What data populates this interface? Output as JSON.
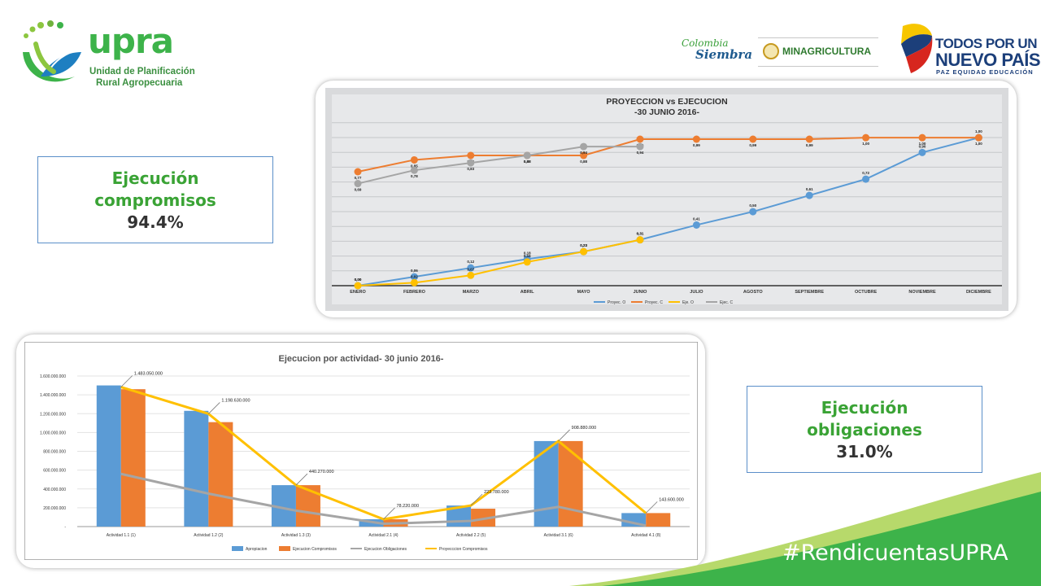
{
  "header": {
    "logo": {
      "name": "upra",
      "line1": "Unidad de Planificación",
      "line2": "Rural Agropecuaria",
      "color": "#3db34a"
    },
    "partner1_line1": "Colombia",
    "partner1_line2": "Siembra",
    "partner2": "MINAGRICULTURA",
    "partner3_line1": "TODOS POR UN",
    "partner3_line2": "NUEVO PAÍS",
    "partner3_line3": "PAZ  EQUIDAD  EDUCACIÓN"
  },
  "stat_compromisos": {
    "line1": "Ejecución",
    "line2": "compromisos",
    "value": "94.4%"
  },
  "stat_obligaciones": {
    "line1": "Ejecución",
    "line2": "obligaciones",
    "value": "31.0%"
  },
  "footer": {
    "hashtag": "#RendicuentasUPRA"
  },
  "colors": {
    "blue": "#5b9bd5",
    "orange": "#ed7d31",
    "gray": "#a5a5a5",
    "yellow": "#ffc000",
    "brand_green": "#3db34a"
  },
  "chart_data": [
    {
      "type": "line",
      "title": "PROYECCION vs EJECUCION",
      "subtitle": "-30 JUNIO 2016-",
      "categories": [
        "ENERO",
        "FEBRERO",
        "MARZO",
        "ABRIL",
        "MAYO",
        "JUNIO",
        "JULIO",
        "AGOSTO",
        "SEPTIEMBRE",
        "OCTUBRE",
        "NOVIEMBRE",
        "DICIEMBRE"
      ],
      "ylim": [
        0,
        1.1
      ],
      "grid": true,
      "legend": "bottom",
      "series": [
        {
          "name": "Proyec. O",
          "color": "#5b9bd5",
          "values": [
            0.0,
            0.06,
            0.12,
            0.18,
            0.23,
            0.31,
            0.41,
            0.5,
            0.61,
            0.72,
            0.9,
            1.0
          ]
        },
        {
          "name": "Proyec. C",
          "color": "#ed7d31",
          "values": [
            0.77,
            0.85,
            0.88,
            0.88,
            0.88,
            0.99,
            0.99,
            0.99,
            0.99,
            1.0,
            1.0,
            1.0
          ]
        },
        {
          "name": "Eje. O",
          "color": "#ffc000",
          "values": [
            0.0,
            0.02,
            0.07,
            0.16,
            0.23,
            0.31,
            null,
            null,
            null,
            null,
            null,
            null
          ]
        },
        {
          "name": "Ejec. C",
          "color": "#a5a5a5",
          "values": [
            0.69,
            0.78,
            0.83,
            0.88,
            0.94,
            0.94,
            null,
            null,
            null,
            null,
            null,
            null
          ]
        }
      ]
    },
    {
      "type": "bar",
      "title": "Ejecucion por actividad- 30 junio 2016-",
      "categories": [
        "Actividad 1.1 (1)",
        "Actividad 1.2 (2)",
        "Actividad 1.3 (3)",
        "Actividad  2.1 (4)",
        "Actividad  2.2 (5)",
        "Actividad 3.1 (6)",
        "Actividad  4.1 (8)"
      ],
      "ylim": [
        0,
        1600000000
      ],
      "yticks": [
        "1.600.000.000",
        "1.400.000.000",
        "1.200.000.000",
        "1.000.000.000",
        "800.000.000",
        "600.000.000",
        "400.000.000",
        "200.000.000",
        "-"
      ],
      "grid": true,
      "legend": "bottom",
      "data_labels": [
        "1.483.050.000",
        "1.198.630.000",
        "440.270.000",
        "78.220.000",
        "223.780.000",
        "908.880.000",
        "143.600.000"
      ],
      "series": [
        {
          "name": "Apropiacion",
          "kind": "bar",
          "color": "#5b9bd5",
          "values": [
            1500000000,
            1230000000,
            440270000,
            78220000,
            223780000,
            908880000,
            143600000
          ]
        },
        {
          "name": "Ejecucion Compromisos",
          "kind": "bar",
          "color": "#ed7d31",
          "values": [
            1460000000,
            1110000000,
            440270000,
            78220000,
            190000000,
            908880000,
            143600000
          ]
        },
        {
          "name": "Ejecucion Obligaciones",
          "kind": "line",
          "color": "#a5a5a5",
          "values": [
            560000000,
            350000000,
            170000000,
            30000000,
            60000000,
            210000000,
            10000000
          ]
        },
        {
          "name": "Proyecccion Compromisos",
          "kind": "line",
          "color": "#ffc000",
          "values": [
            1483050000,
            1198630000,
            440270000,
            78220000,
            223780000,
            908880000,
            143600000
          ]
        }
      ]
    }
  ]
}
